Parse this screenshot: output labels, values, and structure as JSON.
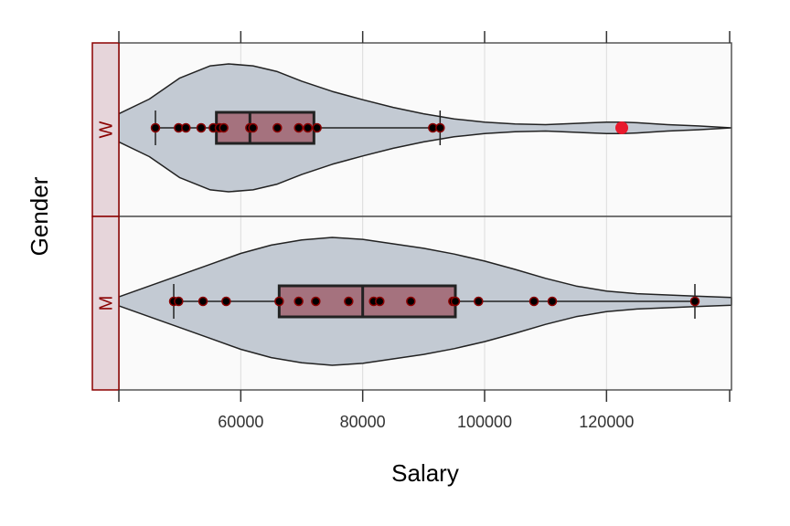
{
  "chart_data": {
    "type": "violin",
    "xlabel": "Salary",
    "ylabel": "Gender",
    "xlim": [
      40000,
      140500
    ],
    "x_ticks": [
      60000,
      80000,
      100000,
      120000
    ],
    "grid": true,
    "colors": {
      "panel_bg": "#fafafa",
      "grid": "#dcdcdc",
      "violin_fill": "#c3cad3",
      "violin_stroke": "#222222",
      "box_fill": "#a0636f",
      "box_stroke": "#222222",
      "point": "#000000",
      "point_stroke": "#8b0000",
      "outlier": "#e8192c",
      "strip_fill": "#e6d5da",
      "strip_border": "#8b0000",
      "strip_text": "#8b0000"
    },
    "panels": [
      {
        "label": "W",
        "whisker_low": 46000,
        "q1": 56000,
        "median": 61500,
        "q3": 72000,
        "whisker_high": 92700,
        "outliers": [
          122500
        ],
        "points": [
          46000,
          49800,
          51000,
          53500,
          55500,
          56500,
          57200,
          61500,
          62000,
          66000,
          69500,
          71000,
          72500,
          91500,
          92700
        ],
        "density": [
          [
            40000,
            0.22
          ],
          [
            45000,
            0.45
          ],
          [
            50000,
            0.78
          ],
          [
            55000,
            0.97
          ],
          [
            58000,
            1.0
          ],
          [
            62000,
            0.97
          ],
          [
            66000,
            0.88
          ],
          [
            70000,
            0.73
          ],
          [
            75000,
            0.57
          ],
          [
            80000,
            0.44
          ],
          [
            85000,
            0.32
          ],
          [
            90000,
            0.22
          ],
          [
            95000,
            0.14
          ],
          [
            100000,
            0.09
          ],
          [
            105000,
            0.06
          ],
          [
            110000,
            0.05
          ],
          [
            115000,
            0.07
          ],
          [
            120000,
            0.09
          ],
          [
            122500,
            0.09
          ],
          [
            125000,
            0.08
          ],
          [
            130000,
            0.05
          ],
          [
            135000,
            0.03
          ],
          [
            140500,
            0.0
          ]
        ]
      },
      {
        "label": "M",
        "whisker_low": 49000,
        "q1": 66300,
        "median": 80000,
        "q3": 95200,
        "whisker_high": 134500,
        "outliers": [],
        "points": [
          49000,
          49800,
          53800,
          57600,
          66300,
          69500,
          72300,
          77700,
          81800,
          82800,
          87900,
          94800,
          95200,
          99000,
          108100,
          111100,
          134500
        ],
        "density": [
          [
            40000,
            0.07
          ],
          [
            45000,
            0.24
          ],
          [
            50000,
            0.41
          ],
          [
            55000,
            0.58
          ],
          [
            60000,
            0.75
          ],
          [
            65000,
            0.88
          ],
          [
            70000,
            0.96
          ],
          [
            75000,
            1.0
          ],
          [
            80000,
            0.97
          ],
          [
            85000,
            0.9
          ],
          [
            90000,
            0.83
          ],
          [
            95000,
            0.74
          ],
          [
            100000,
            0.63
          ],
          [
            105000,
            0.5
          ],
          [
            110000,
            0.36
          ],
          [
            115000,
            0.24
          ],
          [
            120000,
            0.16
          ],
          [
            125000,
            0.12
          ],
          [
            130000,
            0.1
          ],
          [
            135000,
            0.08
          ],
          [
            140500,
            0.06
          ]
        ]
      }
    ]
  }
}
